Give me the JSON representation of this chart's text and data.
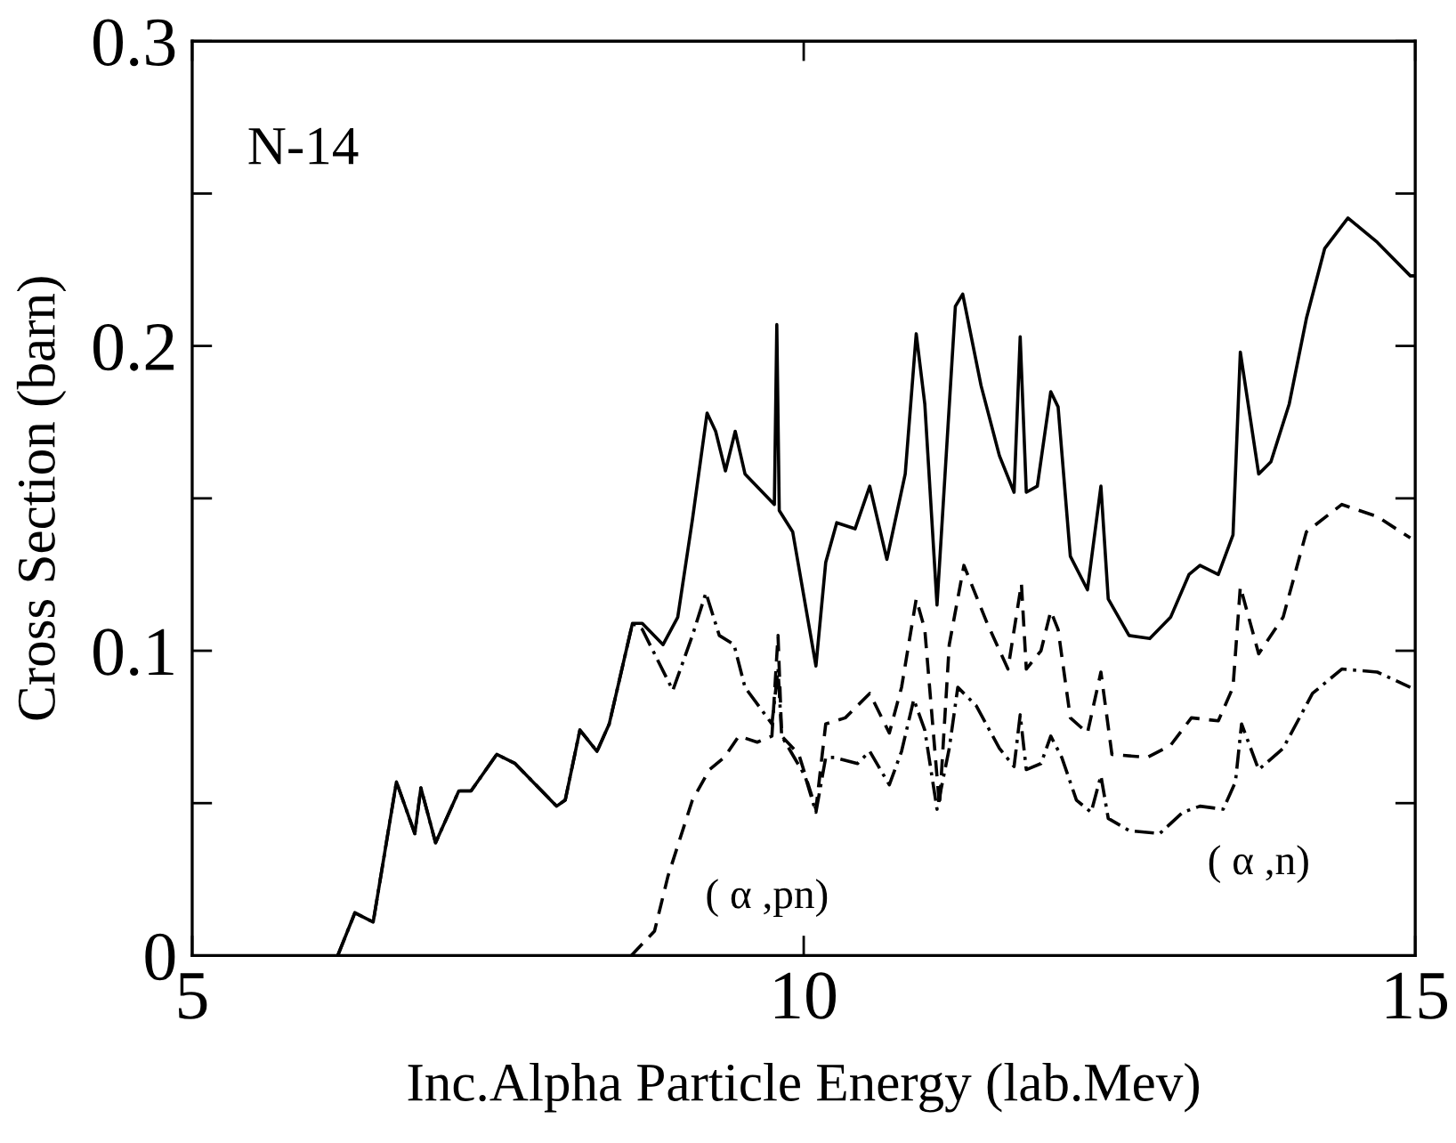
{
  "chart_data": {
    "type": "line",
    "xlabel": "Inc.Alpha Particle Energy (lab.Mev)",
    "ylabel": "Cross Section (barn)",
    "xlim": [
      5,
      15
    ],
    "ylim": [
      0,
      0.3
    ],
    "xticks": [
      5,
      10,
      15
    ],
    "yticks": [
      0,
      {
        "value": 0.05,
        "label": null
      },
      0.1,
      {
        "value": 0.15,
        "label": null
      },
      0.2,
      {
        "value": 0.25,
        "label": null
      },
      0.3
    ],
    "marker": "none",
    "annotations": [
      "N-14",
      "( α ,pn)",
      "( α ,n)"
    ],
    "series": [
      {
        "color": "#000000",
        "line_style": "solid",
        "x": [
          6.19,
          6.33,
          6.48,
          6.67,
          6.82,
          6.87,
          6.99,
          7.18,
          7.28,
          7.49,
          7.64,
          7.98,
          8.05,
          8.17,
          8.31,
          8.41,
          8.6,
          8.68,
          8.85,
          8.97,
          9.09,
          9.21,
          9.28,
          9.36,
          9.44,
          9.52,
          9.76,
          9.78,
          9.8,
          9.91,
          10.1,
          10.18,
          10.27,
          10.42,
          10.54,
          10.68,
          10.83,
          10.92,
          10.99,
          11.09,
          11.24,
          11.3,
          11.45,
          11.6,
          11.72,
          11.77,
          11.82,
          11.91,
          12.02,
          12.08,
          12.18,
          12.32,
          12.43,
          12.49,
          12.66,
          12.83,
          13.0,
          13.15,
          13.24,
          13.39,
          13.51,
          13.57,
          13.72,
          13.82,
          13.97,
          14.11,
          14.26,
          14.45,
          14.69,
          14.96,
          15.0
        ],
        "values": [
          0,
          0.014,
          0.011,
          0.057,
          0.04,
          0.055,
          0.037,
          0.054,
          0.054,
          0.066,
          0.063,
          0.049,
          0.051,
          0.074,
          0.067,
          0.076,
          0.109,
          0.109,
          0.102,
          0.111,
          0.143,
          0.178,
          0.172,
          0.159,
          0.172,
          0.158,
          0.148,
          0.207,
          0.146,
          0.139,
          0.095,
          0.129,
          0.142,
          0.14,
          0.154,
          0.13,
          0.158,
          0.204,
          0.181,
          0.115,
          0.213,
          0.217,
          0.187,
          0.164,
          0.152,
          0.203,
          0.152,
          0.154,
          0.185,
          0.18,
          0.131,
          0.12,
          0.154,
          0.117,
          0.105,
          0.104,
          0.111,
          0.125,
          0.128,
          0.125,
          0.138,
          0.198,
          0.158,
          0.162,
          0.181,
          0.209,
          0.232,
          0.242,
          0.234,
          0.223,
          0.223
        ]
      },
      {
        "color": "#000000",
        "line_style": "dashed",
        "x": [
          8.59,
          8.78,
          8.89,
          9.09,
          9.23,
          9.35,
          9.47,
          9.62,
          9.74,
          9.79,
          9.82,
          9.96,
          10.1,
          10.18,
          10.34,
          10.54,
          10.7,
          10.8,
          10.92,
          10.99,
          11.11,
          11.19,
          11.31,
          11.5,
          11.67,
          11.78,
          11.82,
          11.94,
          12.02,
          12.08,
          12.18,
          12.32,
          12.43,
          12.52,
          12.81,
          13.0,
          13.17,
          13.39,
          13.51,
          13.57,
          13.72,
          13.92,
          14.11,
          14.4,
          14.69,
          14.96
        ],
        "values": [
          0,
          0.008,
          0.026,
          0.051,
          0.061,
          0.065,
          0.072,
          0.07,
          0.072,
          0.105,
          0.072,
          0.066,
          0.048,
          0.076,
          0.078,
          0.086,
          0.073,
          0.088,
          0.117,
          0.107,
          0.049,
          0.102,
          0.128,
          0.109,
          0.094,
          0.122,
          0.094,
          0.1,
          0.113,
          0.107,
          0.078,
          0.073,
          0.093,
          0.066,
          0.065,
          0.069,
          0.078,
          0.077,
          0.088,
          0.121,
          0.099,
          0.111,
          0.139,
          0.148,
          0.144,
          0.137
        ]
      },
      {
        "color": "#000000",
        "line_style": "dashdot",
        "x": [
          6.19,
          6.33,
          6.48,
          6.67,
          6.82,
          6.87,
          6.99,
          7.18,
          7.28,
          7.49,
          7.64,
          7.98,
          8.05,
          8.17,
          8.31,
          8.41,
          8.6,
          8.68,
          8.93,
          9.09,
          9.2,
          9.31,
          9.43,
          9.52,
          9.74,
          9.79,
          9.82,
          10.01,
          10.1,
          10.18,
          10.25,
          10.44,
          10.54,
          10.7,
          10.8,
          10.9,
          10.99,
          11.09,
          11.19,
          11.26,
          11.41,
          11.6,
          11.72,
          11.77,
          11.82,
          11.94,
          12.02,
          12.11,
          12.23,
          12.35,
          12.43,
          12.49,
          12.66,
          12.91,
          13.1,
          13.24,
          13.43,
          13.53,
          13.58,
          13.72,
          13.92,
          14.16,
          14.4,
          14.69,
          14.96
        ],
        "values": [
          0,
          0.014,
          0.011,
          0.057,
          0.04,
          0.055,
          0.037,
          0.054,
          0.054,
          0.066,
          0.063,
          0.049,
          0.051,
          0.074,
          0.067,
          0.076,
          0.109,
          0.107,
          0.087,
          0.105,
          0.119,
          0.105,
          0.102,
          0.088,
          0.076,
          0.094,
          0.072,
          0.059,
          0.047,
          0.065,
          0.065,
          0.063,
          0.067,
          0.056,
          0.067,
          0.084,
          0.074,
          0.048,
          0.068,
          0.088,
          0.082,
          0.068,
          0.062,
          0.079,
          0.061,
          0.063,
          0.072,
          0.065,
          0.051,
          0.047,
          0.059,
          0.045,
          0.041,
          0.04,
          0.047,
          0.049,
          0.048,
          0.057,
          0.076,
          0.061,
          0.068,
          0.086,
          0.094,
          0.093,
          0.088
        ]
      }
    ]
  }
}
